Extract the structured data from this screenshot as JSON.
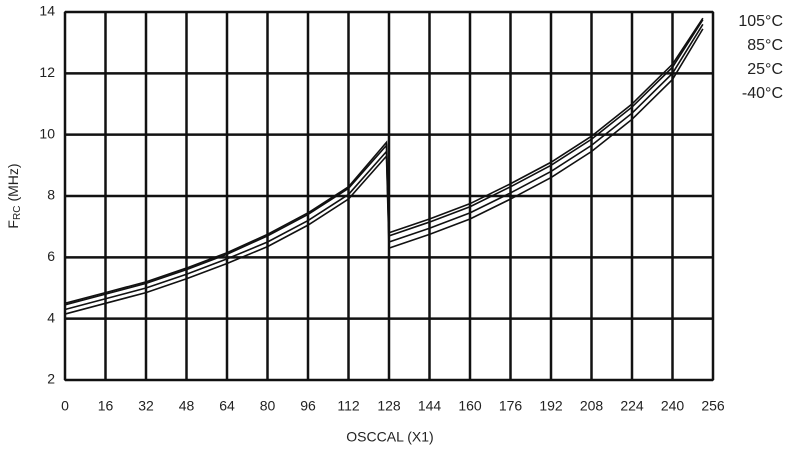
{
  "chart_data": {
    "type": "line",
    "x_label": "OSCCAL (X1)",
    "y_label": [
      "F",
      "RC",
      "(MHz)"
    ],
    "x": [
      0,
      16,
      32,
      48,
      64,
      80,
      96,
      112,
      127,
      128,
      144,
      160,
      176,
      192,
      208,
      224,
      240,
      252
    ],
    "series": [
      {
        "name": "105°C",
        "color": "#111111",
        "values": [
          4.5,
          4.85,
          5.2,
          5.65,
          6.15,
          6.75,
          7.45,
          8.3,
          9.75,
          6.8,
          7.25,
          7.75,
          8.4,
          9.1,
          9.95,
          11.0,
          12.3,
          13.8
        ]
      },
      {
        "name": "85°C",
        "color": "#111111",
        "values": [
          4.45,
          4.8,
          5.15,
          5.6,
          6.1,
          6.7,
          7.4,
          8.25,
          9.65,
          6.7,
          7.15,
          7.65,
          8.3,
          9.0,
          9.85,
          10.9,
          12.2,
          13.75
        ]
      },
      {
        "name": "25°C",
        "color": "#111111",
        "values": [
          4.3,
          4.65,
          5.0,
          5.45,
          5.95,
          6.5,
          7.2,
          8.05,
          9.45,
          6.5,
          6.95,
          7.45,
          8.1,
          8.8,
          9.65,
          10.7,
          12.0,
          13.6
        ]
      },
      {
        "name": "-40°C",
        "color": "#111111",
        "values": [
          4.15,
          4.5,
          4.85,
          5.3,
          5.8,
          6.35,
          7.05,
          7.9,
          9.3,
          6.3,
          6.75,
          7.25,
          7.9,
          8.6,
          9.45,
          10.5,
          11.8,
          13.45
        ]
      }
    ],
    "xlim": [
      0,
      256
    ],
    "xticks": [
      0,
      16,
      32,
      48,
      64,
      80,
      96,
      112,
      128,
      144,
      160,
      176,
      192,
      208,
      224,
      240,
      256
    ],
    "ylim": [
      2,
      14
    ],
    "yticks": [
      2,
      4,
      6,
      8,
      10,
      12,
      14
    ],
    "grid": true
  }
}
